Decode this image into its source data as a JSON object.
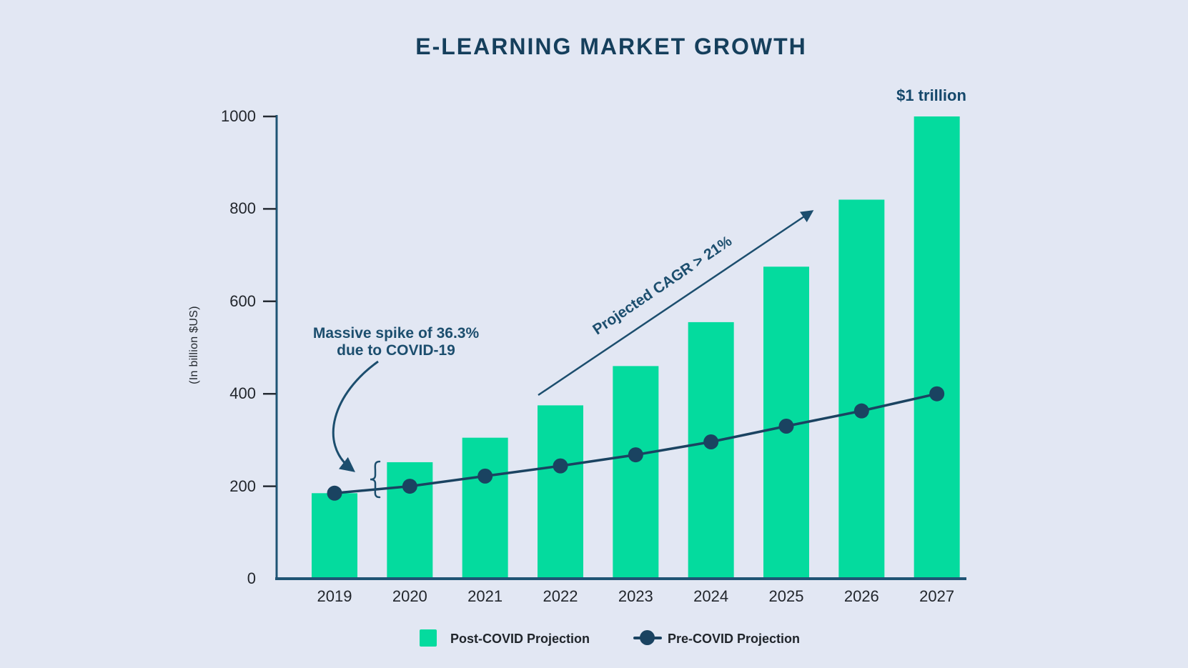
{
  "title": "E-LEARNING MARKET GROWTH",
  "top_label": "$1 trillion",
  "y_axis": {
    "label": "(In billion $US)",
    "ticks": [
      0,
      200,
      400,
      600,
      800,
      1000
    ]
  },
  "annotations": {
    "spike": {
      "line1": "Massive spike of 36.3%",
      "line2": "due to COVID-19"
    },
    "cagr": {
      "text": "Projected CAGR > 21%"
    }
  },
  "legend": [
    {
      "label": "Post-COVID Projection",
      "marker": "bar-swatch"
    },
    {
      "label": "Pre-COVID Projection",
      "marker": "line-dot"
    }
  ],
  "colors": {
    "background": "#E2E7F3",
    "bar": "#04DB9E",
    "line": "#1A4361",
    "axis": "#1F5474",
    "tick": "#252B33",
    "annotation": "#1C4E6E",
    "title_text": "#153F5C"
  },
  "chart_data": {
    "type": "bar",
    "title": "E-LEARNING MARKET GROWTH",
    "xlabel": "",
    "ylabel": "(In billion $US)",
    "ylim": [
      0,
      1000
    ],
    "yticks": [
      0,
      200,
      400,
      600,
      800,
      1000
    ],
    "grid": false,
    "legend_position": "bottom",
    "categories": [
      "2019",
      "2020",
      "2021",
      "2022",
      "2023",
      "2024",
      "2025",
      "2026",
      "2027"
    ],
    "series": [
      {
        "name": "Post-COVID Projection",
        "type": "bar",
        "color": "#04DB9E",
        "values": [
          185,
          252,
          305,
          375,
          460,
          555,
          675,
          820,
          1000
        ]
      },
      {
        "name": "Pre-COVID Projection",
        "type": "line",
        "color": "#1A4361",
        "values": [
          185,
          200,
          222,
          244,
          268,
          296,
          330,
          363,
          400
        ]
      }
    ],
    "annotations": [
      {
        "text": "Massive spike of 36.3% due to COVID-19",
        "target": "2020 bar vs pre-COVID line"
      },
      {
        "text": "Projected CAGR > 21%",
        "target": "bar tops 2022-2026"
      },
      {
        "text": "$1 trillion",
        "target": "2027 bar"
      }
    ]
  }
}
